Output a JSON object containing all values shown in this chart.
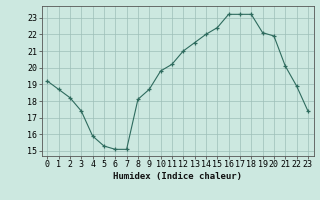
{
  "xlabel": "Humidex (Indice chaleur)",
  "x": [
    0,
    1,
    2,
    3,
    4,
    5,
    6,
    7,
    8,
    9,
    10,
    11,
    12,
    13,
    14,
    15,
    16,
    17,
    18,
    19,
    20,
    21,
    22,
    23
  ],
  "y": [
    19.2,
    18.7,
    18.2,
    17.4,
    15.9,
    15.3,
    15.1,
    15.1,
    18.1,
    18.7,
    19.8,
    20.2,
    21.0,
    21.5,
    22.0,
    22.4,
    23.2,
    23.2,
    23.2,
    22.1,
    21.9,
    20.1,
    18.9,
    17.4
  ],
  "xlim": [
    -0.5,
    23.5
  ],
  "ylim": [
    14.7,
    23.7
  ],
  "yticks": [
    15,
    16,
    17,
    18,
    19,
    20,
    21,
    22,
    23
  ],
  "xticks": [
    0,
    1,
    2,
    3,
    4,
    5,
    6,
    7,
    8,
    9,
    10,
    11,
    12,
    13,
    14,
    15,
    16,
    17,
    18,
    19,
    20,
    21,
    22,
    23
  ],
  "line_color": "#2e6b5e",
  "marker_color": "#2e6b5e",
  "bg_color": "#cce8e0",
  "grid_color": "#9dbfb8",
  "label_fontsize": 6.5,
  "tick_fontsize": 6.0
}
